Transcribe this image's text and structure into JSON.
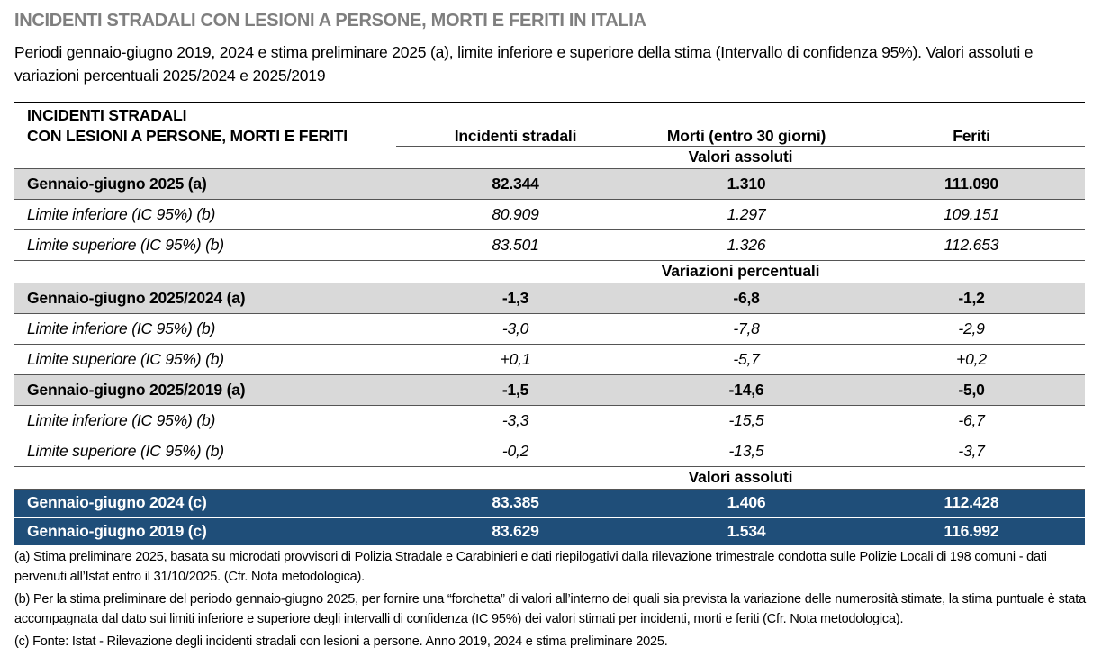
{
  "title": "INCIDENTI STRADALI CON LESIONI A PERSONE, MORTI E FERITI IN ITALIA",
  "subtitle": "Periodi gennaio-giugno 2019, 2024 e stima preliminare 2025 (a), limite inferiore e superiore della stima (Intervallo di confidenza 95%). Valori assoluti e variazioni percentuali 2025/2024 e 2025/2019",
  "table": {
    "header": {
      "label": [
        "INCIDENTI STRADALI",
        "CON LESIONI A PERSONE, MORTI E FERITI"
      ],
      "columns": [
        "Incidenti stradali",
        "Morti (entro 30 giorni)",
        "Feriti"
      ]
    },
    "sections": [
      {
        "heading": "Valori assoluti",
        "rows": [
          [
            "Gennaio-giugno 2025 (a)",
            "82.344",
            "1.310",
            "111.090"
          ],
          [
            "Limite inferiore (IC 95%) (b)",
            "80.909",
            "1.297",
            "109.151"
          ],
          [
            "Limite superiore (IC 95%) (b)",
            "83.501",
            "1.326",
            "112.653"
          ]
        ]
      },
      {
        "heading": "Variazioni percentuali",
        "rows": [
          [
            "Gennaio-giugno 2025/2024 (a)",
            "-1,3",
            "-6,8",
            "-1,2"
          ],
          [
            "Limite inferiore (IC 95%) (b)",
            "-3,0",
            "-7,8",
            "-2,9"
          ],
          [
            "Limite superiore (IC 95%) (b)",
            "+0,1",
            "-5,7",
            "+0,2"
          ],
          [
            "Gennaio-giugno 2025/2019 (a)",
            "-1,5",
            "-14,6",
            "-5,0"
          ],
          [
            "Limite inferiore (IC 95%) (b)",
            "-3,3",
            "-15,5",
            "-6,7"
          ],
          [
            "Limite superiore (IC 95%) (b)",
            "-0,2",
            "-13,5",
            "-3,7"
          ]
        ]
      },
      {
        "heading": "Valori assoluti",
        "rows": [
          [
            "Gennaio-giugno 2024 (c)",
            "83.385",
            "1.406",
            "112.428"
          ],
          [
            "Gennaio-giugno 2019 (c)",
            "83.629",
            "1.534",
            "116.992"
          ]
        ]
      }
    ]
  },
  "notes": [
    "(a) Stima preliminare 2025, basata su microdati provvisori di Polizia Stradale e Carabinieri e dati riepilogativi dalla rilevazione trimestrale condotta sulle Polizie Locali di 198 comuni - dati pervenuti all’Istat entro il 31/10/2025. (Cfr. Nota metodologica).",
    "(b) Per la stima preliminare del periodo gennaio-giugno 2025, per fornire una “forchetta” di valori all’interno dei quali sia prevista la variazione delle numerosità stimate, la stima puntuale è stata accompagnata dal dato sui limiti inferiore e superiore degli intervalli di confidenza (IC 95%) dei valori stimati per incidenti, morti e feriti (Cfr. Nota metodologica).",
    "(c) Fonte: Istat - Rilevazione degli incidenti stradali con lesioni a persone. Anno 2019, 2024 e stima preliminare 2025."
  ]
}
